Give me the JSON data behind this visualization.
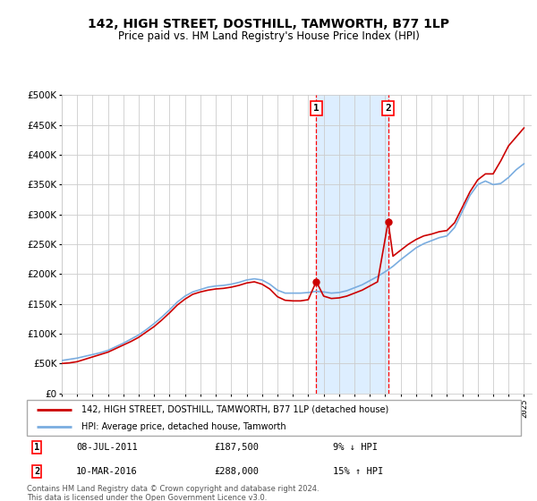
{
  "title": "142, HIGH STREET, DOSTHILL, TAMWORTH, B77 1LP",
  "subtitle": "Price paid vs. HM Land Registry's House Price Index (HPI)",
  "ylabel_ticks": [
    "£0",
    "£50K",
    "£100K",
    "£150K",
    "£200K",
    "£250K",
    "£300K",
    "£350K",
    "£400K",
    "£450K",
    "£500K"
  ],
  "ytick_values": [
    0,
    50000,
    100000,
    150000,
    200000,
    250000,
    300000,
    350000,
    400000,
    450000,
    500000
  ],
  "ylim": [
    0,
    500000
  ],
  "xlim_start": 1995.0,
  "xlim_end": 2025.5,
  "transaction1": {
    "date": "08-JUL-2011",
    "price": 187500,
    "pct": "9%",
    "direction": "↓",
    "label": "1"
  },
  "transaction2": {
    "date": "10-MAR-2016",
    "price": 288000,
    "pct": "15%",
    "direction": "↑",
    "label": "2"
  },
  "tx1_x": 2011.52,
  "tx2_x": 2016.19,
  "legend_label1": "142, HIGH STREET, DOSTHILL, TAMWORTH, B77 1LP (detached house)",
  "legend_label2": "HPI: Average price, detached house, Tamworth",
  "footer": "Contains HM Land Registry data © Crown copyright and database right 2024.\nThis data is licensed under the Open Government Licence v3.0.",
  "line_color_red": "#cc0000",
  "line_color_blue": "#7aade0",
  "shade_color": "#ddeeff",
  "hpi_x": [
    1995.0,
    1995.5,
    1996.0,
    1996.5,
    1997.0,
    1997.5,
    1998.0,
    1998.5,
    1999.0,
    1999.5,
    2000.0,
    2000.5,
    2001.0,
    2001.5,
    2002.0,
    2002.5,
    2003.0,
    2003.5,
    2004.0,
    2004.5,
    2005.0,
    2005.5,
    2006.0,
    2006.5,
    2007.0,
    2007.5,
    2008.0,
    2008.5,
    2009.0,
    2009.5,
    2010.0,
    2010.5,
    2011.0,
    2011.5,
    2012.0,
    2012.5,
    2013.0,
    2013.5,
    2014.0,
    2014.5,
    2015.0,
    2015.5,
    2016.0,
    2016.5,
    2017.0,
    2017.5,
    2018.0,
    2018.5,
    2019.0,
    2019.5,
    2020.0,
    2020.5,
    2021.0,
    2021.5,
    2022.0,
    2022.5,
    2023.0,
    2023.5,
    2024.0,
    2024.5,
    2025.0
  ],
  "hpi_v": [
    55000,
    57000,
    59000,
    62000,
    65000,
    68000,
    72000,
    78000,
    84000,
    91000,
    98000,
    107000,
    117000,
    128000,
    140000,
    153000,
    163000,
    170000,
    174000,
    178000,
    180000,
    181000,
    183000,
    186000,
    190000,
    192000,
    190000,
    183000,
    173000,
    168000,
    168000,
    168000,
    169000,
    171000,
    170000,
    168000,
    169000,
    172000,
    177000,
    182000,
    189000,
    196000,
    204000,
    213000,
    224000,
    234000,
    244000,
    251000,
    256000,
    261000,
    264000,
    278000,
    305000,
    332000,
    350000,
    356000,
    350000,
    352000,
    362000,
    375000,
    385000
  ],
  "price_x": [
    1995.0,
    1995.5,
    1996.0,
    1996.5,
    1997.0,
    1997.5,
    1998.0,
    1998.5,
    1999.0,
    1999.5,
    2000.0,
    2000.5,
    2001.0,
    2001.5,
    2002.0,
    2002.5,
    2003.0,
    2003.5,
    2004.0,
    2004.5,
    2005.0,
    2005.5,
    2006.0,
    2006.5,
    2007.0,
    2007.5,
    2008.0,
    2008.5,
    2009.0,
    2009.5,
    2010.0,
    2010.5,
    2011.0,
    2011.52,
    2012.0,
    2012.5,
    2013.0,
    2013.5,
    2014.0,
    2014.5,
    2015.0,
    2015.5,
    2016.19,
    2016.5,
    2017.0,
    2017.5,
    2018.0,
    2018.5,
    2019.0,
    2019.5,
    2020.0,
    2020.5,
    2021.0,
    2021.5,
    2022.0,
    2022.5,
    2023.0,
    2023.5,
    2024.0,
    2024.5,
    2025.0
  ],
  "price_v": [
    50000,
    51000,
    53000,
    57000,
    61000,
    65000,
    69000,
    75000,
    81000,
    87000,
    94000,
    103000,
    112000,
    123000,
    135000,
    148000,
    158000,
    166000,
    170000,
    173000,
    175000,
    176000,
    178000,
    181000,
    185000,
    187000,
    183000,
    175000,
    162000,
    156000,
    155000,
    155000,
    157000,
    187500,
    163000,
    159000,
    160000,
    163000,
    168000,
    173000,
    180000,
    187000,
    288000,
    230000,
    240000,
    250000,
    258000,
    264000,
    267000,
    271000,
    273000,
    286000,
    312000,
    338000,
    358000,
    368000,
    368000,
    390000,
    415000,
    430000,
    445000
  ]
}
